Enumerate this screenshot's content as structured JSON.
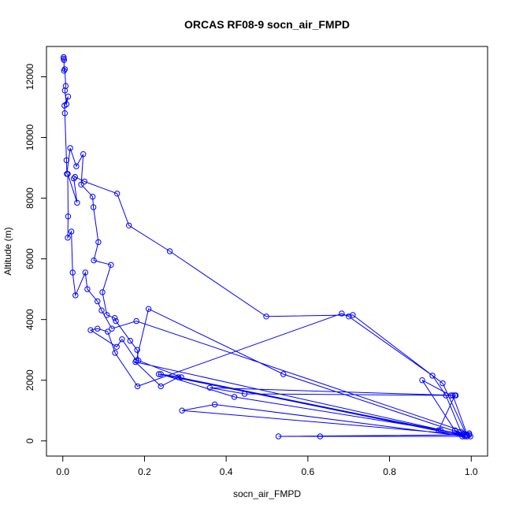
{
  "chart_data": {
    "type": "scatter",
    "title": "ORCAS RF08-9 socn_air_FMPD",
    "xlabel": "socn_air_FMPD",
    "ylabel": "Altitude (m)",
    "xlim": [
      -0.04,
      1.04
    ],
    "ylim": [
      -500,
      13000
    ],
    "xticks": [
      0.0,
      0.2,
      0.4,
      0.6,
      0.8,
      1.0
    ],
    "xtick_labels": [
      "0.0",
      "0.2",
      "0.4",
      "0.6",
      "0.8",
      "1.0"
    ],
    "yticks": [
      0,
      2000,
      4000,
      6000,
      8000,
      10000,
      12000
    ],
    "ytick_labels": [
      "0",
      "2000",
      "4000",
      "6000",
      "8000",
      "10000",
      "12000"
    ],
    "grid": false,
    "legend": "none",
    "color": "#0000ff",
    "series": [
      {
        "mode": "lines+markers",
        "x": [
          0.002,
          0.002,
          0.003,
          0.003,
          0.005,
          0.007,
          0.005,
          0.009,
          0.013,
          0.004,
          0.005,
          0.009,
          0.01,
          0.018,
          0.033,
          0.05,
          0.045,
          0.073,
          0.075,
          0.087,
          0.076,
          0.118,
          0.097,
          0.108,
          0.127,
          0.13,
          0.165,
          0.182,
          0.185,
          0.29,
          0.24,
          0.42,
          0.995,
          0.99,
          0.93,
          0.71,
          0.498,
          0.262,
          0.162,
          0.133,
          0.053,
          0.03,
          0.027,
          0.035,
          0.012,
          0.013,
          0.012,
          0.021,
          0.024,
          0.031,
          0.055,
          0.06,
          0.085,
          0.095,
          0.12,
          0.18,
          0.995,
          0.975,
          0.938,
          0.905,
          0.7,
          0.683,
          0.183,
          0.128,
          0.11,
          0.085,
          0.068,
          0.132,
          0.145,
          0.18,
          0.21,
          0.54,
          0.998,
          0.96,
          0.88,
          0.95,
          0.962,
          0.36,
          0.445,
          0.96,
          0.92,
          0.283,
          0.24,
          0.178,
          0.98,
          0.925,
          0.235,
          0.985,
          0.372,
          0.292,
          0.988,
          0.978,
          0.63,
          0.528,
          0.99,
          0.955
        ],
        "y": [
          12650,
          12600,
          12550,
          12200,
          12250,
          11700,
          11550,
          11100,
          11350,
          11050,
          10800,
          9250,
          8800,
          9650,
          9050,
          9450,
          8450,
          8050,
          7700,
          6550,
          5950,
          5800,
          4900,
          4150,
          4050,
          3950,
          3300,
          3000,
          2650,
          2100,
          2200,
          1450,
          200,
          150,
          1900,
          4150,
          4100,
          6250,
          7100,
          8150,
          8550,
          8700,
          8650,
          7850,
          8800,
          7400,
          6700,
          6900,
          5550,
          4800,
          5550,
          5000,
          4600,
          4300,
          3700,
          3950,
          250,
          300,
          1500,
          2150,
          4100,
          4200,
          1800,
          2900,
          3600,
          3700,
          3650,
          3100,
          3350,
          2650,
          4350,
          2200,
          150,
          350,
          2000,
          1500,
          1500,
          1750,
          1550,
          1500,
          350,
          2100,
          1800,
          2600,
          200,
          350,
          2200,
          150,
          1200,
          1000,
          200,
          150,
          150,
          150,
          200,
          1500
        ]
      }
    ]
  }
}
